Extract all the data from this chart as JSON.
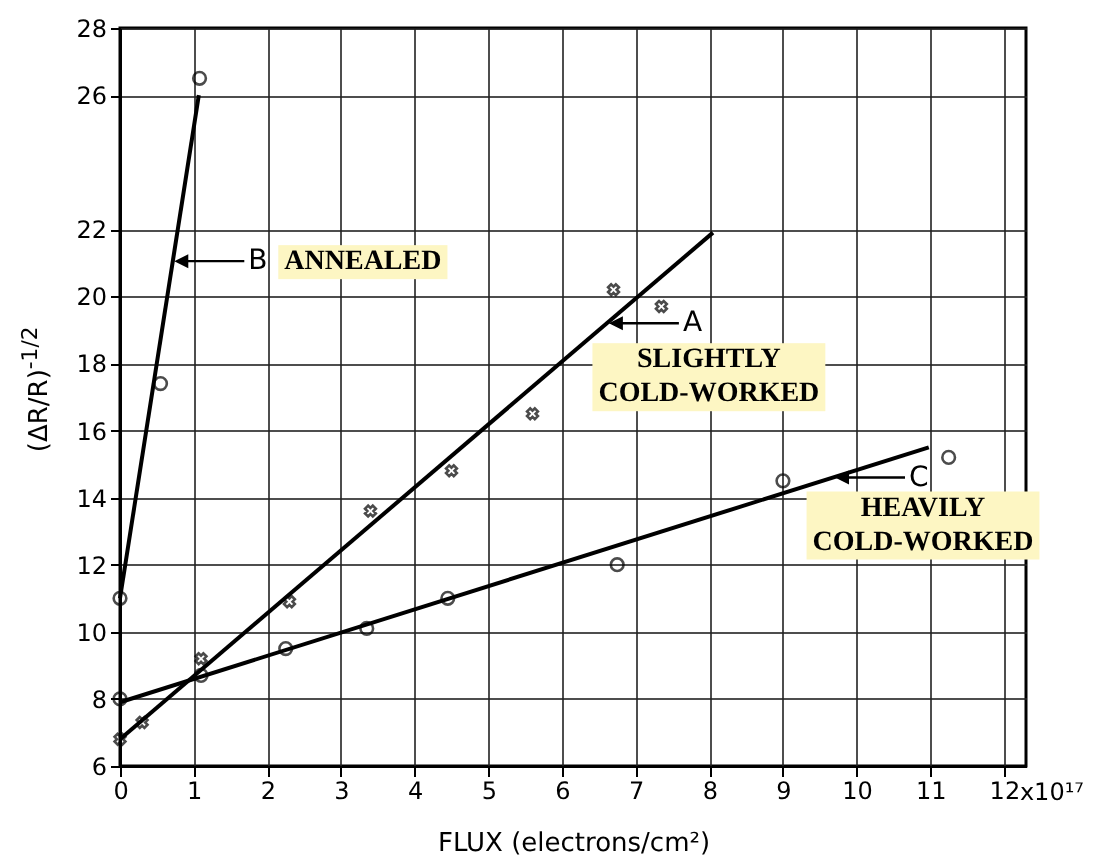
{
  "chart_data": {
    "type": "scatter",
    "xlabel": "FLUX (electrons/cm²)",
    "ylabel": "(ΔR/R)$^{-1/2}$",
    "xlim": [
      0,
      12.3
    ],
    "ylim": [
      6,
      28
    ],
    "xticks": [
      0,
      1,
      2,
      3,
      4,
      5,
      6,
      7,
      8,
      9,
      10,
      11,
      12
    ],
    "yticks": [
      6,
      8,
      10,
      12,
      14,
      16,
      18,
      20,
      22,
      26,
      28
    ],
    "grid": true,
    "series": [
      {
        "marker": "circle",
        "color": "#000000",
        "x": [
          0,
          0.55,
          1.08
        ],
        "values": [
          11,
          17.4,
          26.5
        ]
      },
      {
        "type": "line",
        "color": "#000000",
        "x": [
          0,
          1.07
        ],
        "values": [
          11,
          26
        ]
      },
      {
        "marker": "cross",
        "color": "#000000",
        "x": [
          0,
          0.3,
          1.1,
          2.3,
          3.4,
          4.5,
          5.6,
          6.7,
          7.35
        ],
        "values": [
          6.8,
          7.3,
          9.2,
          10.9,
          13.6,
          14.8,
          16.5,
          20.2,
          19.7
        ]
      },
      {
        "type": "line",
        "color": "#000000",
        "x": [
          0,
          8.05
        ],
        "values": [
          6.8,
          21.9
        ]
      },
      {
        "marker": "circle",
        "color": "#000000",
        "x": [
          0,
          1.1,
          2.25,
          3.35,
          4.45,
          6.75,
          9.0,
          11.25
        ],
        "values": [
          8,
          8.7,
          9.5,
          10.1,
          11,
          12,
          14.5,
          15.2
        ]
      },
      {
        "type": "line",
        "color": "#000000",
        "x": [
          0,
          10.98
        ],
        "values": [
          7.9,
          15.5
        ]
      }
    ],
    "annotations": [
      {
        "text": "B",
        "x": 0.71,
        "y": 21.05
      },
      "ANNEALED",
      {
        "text": "A",
        "x": 6.61,
        "y": 19.2
      },
      "SLIGHTLY COLD-WORKED",
      {
        "text": "C",
        "x": 9.68,
        "y": 14.6
      },
      "HEAVILY COLD-WORKED",
      "x10¹⁷"
    ]
  }
}
